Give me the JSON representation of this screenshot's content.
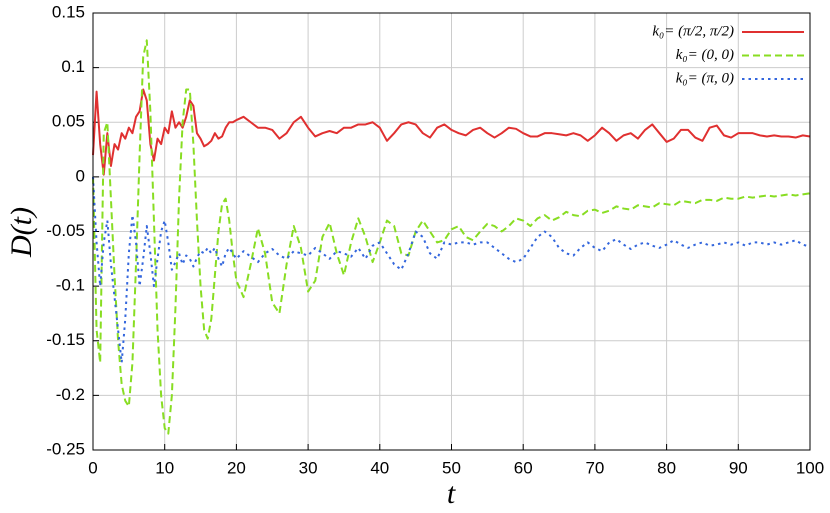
{
  "chart_data": {
    "type": "line",
    "xlabel": "t",
    "ylabel": "D(t)",
    "xlim": [
      0,
      100
    ],
    "ylim": [
      -0.25,
      0.15
    ],
    "xticks": [
      0,
      10,
      20,
      30,
      40,
      50,
      60,
      70,
      80,
      90,
      100
    ],
    "yticks": [
      0.15,
      0.1,
      0.05,
      0,
      -0.05,
      -0.1,
      -0.15,
      -0.2,
      -0.25
    ],
    "grid": true,
    "legend": "upper right",
    "x": [
      0,
      0.5,
      1,
      1.5,
      2,
      2.5,
      3,
      3.5,
      4,
      4.5,
      5,
      5.5,
      6,
      6.5,
      7,
      7.5,
      8,
      8.5,
      9,
      9.5,
      10,
      10.5,
      11,
      11.5,
      12,
      12.5,
      13,
      13.5,
      14,
      14.5,
      15,
      15.5,
      16,
      16.5,
      17,
      17.5,
      18,
      18.5,
      19,
      19.5,
      20,
      21,
      22,
      23,
      24,
      25,
      26,
      27,
      28,
      29,
      30,
      31,
      32,
      33,
      34,
      35,
      36,
      37,
      38,
      39,
      40,
      41,
      42,
      43,
      44,
      45,
      46,
      47,
      48,
      49,
      50,
      51,
      52,
      53,
      54,
      55,
      56,
      57,
      58,
      59,
      60,
      61,
      62,
      63,
      64,
      65,
      66,
      67,
      68,
      69,
      70,
      71,
      72,
      73,
      74,
      75,
      76,
      77,
      78,
      79,
      80,
      81,
      82,
      83,
      84,
      85,
      86,
      87,
      88,
      89,
      90,
      91,
      92,
      93,
      94,
      95,
      96,
      97,
      98,
      99,
      100
    ],
    "series": [
      {
        "name": "k₀= (π/2, π/2)",
        "color": "#e03030",
        "dash": "solid",
        "values": [
          0.02,
          0.078,
          0.03,
          0.002,
          0.04,
          0.01,
          0.03,
          0.025,
          0.04,
          0.035,
          0.045,
          0.04,
          0.055,
          0.06,
          0.08,
          0.07,
          0.03,
          0.015,
          0.035,
          0.03,
          0.045,
          0.04,
          0.06,
          0.045,
          0.05,
          0.045,
          0.055,
          0.07,
          0.065,
          0.04,
          0.035,
          0.028,
          0.03,
          0.033,
          0.04,
          0.035,
          0.037,
          0.045,
          0.05,
          0.05,
          0.052,
          0.055,
          0.05,
          0.045,
          0.045,
          0.043,
          0.035,
          0.04,
          0.05,
          0.055,
          0.045,
          0.037,
          0.04,
          0.042,
          0.04,
          0.045,
          0.045,
          0.048,
          0.048,
          0.05,
          0.045,
          0.033,
          0.04,
          0.048,
          0.05,
          0.048,
          0.04,
          0.036,
          0.045,
          0.048,
          0.043,
          0.04,
          0.038,
          0.043,
          0.045,
          0.04,
          0.036,
          0.04,
          0.045,
          0.044,
          0.04,
          0.037,
          0.037,
          0.04,
          0.04,
          0.039,
          0.038,
          0.04,
          0.038,
          0.033,
          0.038,
          0.045,
          0.04,
          0.033,
          0.038,
          0.04,
          0.035,
          0.043,
          0.048,
          0.04,
          0.032,
          0.035,
          0.043,
          0.043,
          0.036,
          0.033,
          0.045,
          0.047,
          0.038,
          0.036,
          0.04,
          0.04,
          0.04,
          0.038,
          0.037,
          0.038,
          0.037,
          0.037,
          0.036,
          0.038,
          0.037
        ]
      },
      {
        "name": "k₀= (0, 0)",
        "color": "#88dd22",
        "dash": "dashed",
        "values": [
          0,
          -0.14,
          -0.17,
          0.04,
          0.05,
          -0.02,
          -0.09,
          -0.15,
          -0.19,
          -0.205,
          -0.21,
          -0.17,
          -0.08,
          0.02,
          0.11,
          0.125,
          0.06,
          -0.04,
          -0.14,
          -0.2,
          -0.23,
          -0.235,
          -0.2,
          -0.12,
          -0.02,
          0.05,
          0.08,
          0.08,
          0.03,
          -0.04,
          -0.1,
          -0.14,
          -0.148,
          -0.13,
          -0.09,
          -0.05,
          -0.025,
          -0.02,
          -0.04,
          -0.07,
          -0.095,
          -0.11,
          -0.08,
          -0.047,
          -0.07,
          -0.115,
          -0.125,
          -0.08,
          -0.045,
          -0.065,
          -0.105,
          -0.095,
          -0.055,
          -0.042,
          -0.07,
          -0.09,
          -0.06,
          -0.038,
          -0.055,
          -0.078,
          -0.06,
          -0.04,
          -0.045,
          -0.07,
          -0.072,
          -0.05,
          -0.04,
          -0.05,
          -0.06,
          -0.058,
          -0.048,
          -0.045,
          -0.055,
          -0.058,
          -0.05,
          -0.043,
          -0.045,
          -0.05,
          -0.045,
          -0.038,
          -0.04,
          -0.045,
          -0.038,
          -0.035,
          -0.04,
          -0.037,
          -0.032,
          -0.035,
          -0.036,
          -0.031,
          -0.03,
          -0.033,
          -0.031,
          -0.027,
          -0.029,
          -0.03,
          -0.026,
          -0.027,
          -0.028,
          -0.024,
          -0.025,
          -0.026,
          -0.022,
          -0.023,
          -0.024,
          -0.021,
          -0.021,
          -0.022,
          -0.019,
          -0.02,
          -0.02,
          -0.018,
          -0.019,
          -0.018,
          -0.017,
          -0.018,
          -0.017,
          -0.016,
          -0.017,
          -0.016,
          -0.015
        ]
      },
      {
        "name": "k₀= (π, 0)",
        "color": "#3366dd",
        "dash": "dotted",
        "values": [
          0,
          -0.06,
          -0.1,
          -0.06,
          -0.04,
          -0.08,
          -0.11,
          -0.14,
          -0.17,
          -0.13,
          -0.07,
          -0.035,
          -0.06,
          -0.1,
          -0.075,
          -0.045,
          -0.07,
          -0.1,
          -0.075,
          -0.05,
          -0.04,
          -0.06,
          -0.085,
          -0.078,
          -0.07,
          -0.08,
          -0.072,
          -0.075,
          -0.082,
          -0.074,
          -0.068,
          -0.07,
          -0.065,
          -0.07,
          -0.065,
          -0.075,
          -0.082,
          -0.07,
          -0.065,
          -0.07,
          -0.075,
          -0.068,
          -0.073,
          -0.078,
          -0.07,
          -0.066,
          -0.072,
          -0.075,
          -0.068,
          -0.07,
          -0.072,
          -0.065,
          -0.07,
          -0.075,
          -0.068,
          -0.07,
          -0.073,
          -0.065,
          -0.075,
          -0.063,
          -0.06,
          -0.07,
          -0.08,
          -0.085,
          -0.07,
          -0.05,
          -0.055,
          -0.07,
          -0.075,
          -0.06,
          -0.062,
          -0.06,
          -0.06,
          -0.062,
          -0.06,
          -0.06,
          -0.065,
          -0.07,
          -0.075,
          -0.078,
          -0.075,
          -0.065,
          -0.055,
          -0.05,
          -0.055,
          -0.065,
          -0.07,
          -0.072,
          -0.065,
          -0.06,
          -0.065,
          -0.068,
          -0.06,
          -0.057,
          -0.062,
          -0.066,
          -0.062,
          -0.06,
          -0.063,
          -0.065,
          -0.062,
          -0.058,
          -0.062,
          -0.065,
          -0.062,
          -0.06,
          -0.063,
          -0.062,
          -0.06,
          -0.062,
          -0.06,
          -0.063,
          -0.06,
          -0.06,
          -0.062,
          -0.06,
          -0.062,
          -0.06,
          -0.058,
          -0.062,
          -0.064
        ]
      }
    ]
  }
}
